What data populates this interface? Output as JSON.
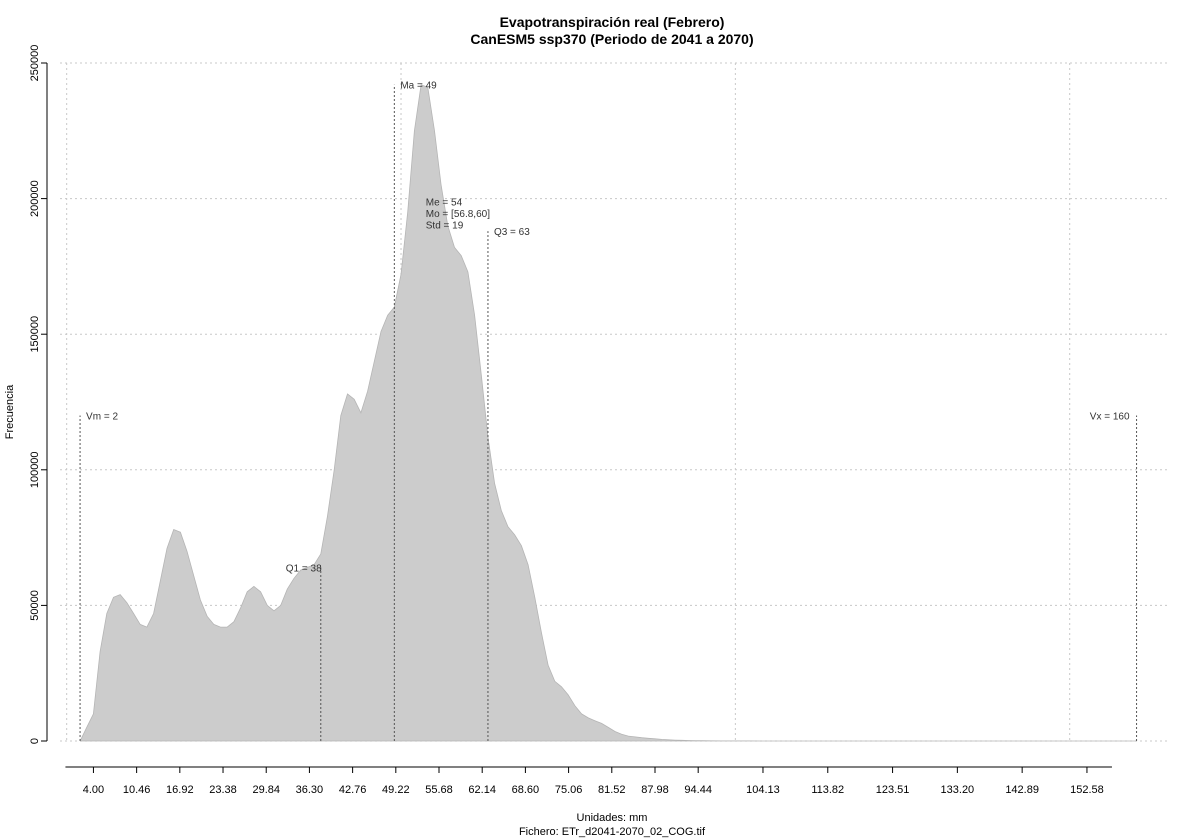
{
  "chart_data": {
    "type": "area",
    "title": "Evapotranspiración real (Febrero)",
    "subtitle": "CanESM5 ssp370 (Periodo de 2041 a 2070)",
    "xlabel": "Unidades: mm",
    "footer": "Fichero: ETr_d2041-2070_02_COG.tif",
    "ylabel": "Frecuencia",
    "xlim": [
      -1,
      165
    ],
    "ylim": [
      0,
      250000
    ],
    "y_ticks": [
      0,
      50000,
      100000,
      150000,
      200000,
      250000
    ],
    "y_tick_labels": [
      "0",
      "50000",
      "100000",
      "150000",
      "200000",
      "250000"
    ],
    "x_ticks": [
      4.0,
      10.46,
      16.92,
      23.38,
      29.84,
      36.3,
      42.76,
      49.22,
      55.68,
      62.14,
      68.6,
      75.06,
      81.52,
      87.98,
      94.44,
      104.13,
      113.82,
      123.51,
      133.2,
      142.89,
      152.58
    ],
    "x_tick_labels": [
      "4.00",
      "10.46",
      "16.92",
      "23.38",
      "29.84",
      "36.30",
      "42.76",
      "49.22",
      "55.68",
      "62.14",
      "68.60",
      "75.06",
      "81.52",
      "87.98",
      "94.44",
      "104.13",
      "113.82",
      "123.51",
      "133.20",
      "142.89",
      "152.58"
    ],
    "x_gridlines": [
      0,
      50,
      100,
      150
    ],
    "y_gridlines": [
      0,
      50000,
      100000,
      150000,
      200000,
      250000
    ],
    "grid": true,
    "fill_color": "#cccccc",
    "series": [
      {
        "x": [
          2,
          3,
          4,
          5,
          6,
          7,
          8,
          9,
          10,
          11,
          12,
          13,
          14,
          15,
          16,
          17,
          18,
          19,
          20,
          21,
          22,
          23,
          24,
          25,
          26,
          27,
          28,
          29,
          30,
          31,
          32,
          33,
          34,
          35,
          36,
          37,
          38,
          39,
          40,
          41,
          42,
          43,
          44,
          45,
          46,
          47,
          48,
          49,
          50,
          51,
          52,
          53,
          54,
          55,
          56,
          57,
          58,
          59,
          60,
          61,
          62,
          63,
          64,
          65,
          66,
          67,
          68,
          69,
          70,
          71,
          72,
          73,
          74,
          75,
          76,
          77,
          78,
          79,
          80,
          81,
          82,
          83,
          84,
          85,
          86,
          87,
          88,
          89,
          90,
          91,
          92,
          93,
          94,
          95,
          96,
          98,
          100,
          102,
          104,
          106,
          110,
          120,
          130,
          140,
          150,
          160
        ],
        "y": [
          0,
          5000,
          10000,
          33000,
          47000,
          53000,
          54000,
          51000,
          47000,
          43000,
          42000,
          47000,
          59000,
          71000,
          78000,
          77000,
          70000,
          61000,
          52000,
          46000,
          43000,
          42000,
          42000,
          44000,
          49000,
          55000,
          57000,
          55000,
          50000,
          48000,
          50000,
          56000,
          60000,
          63000,
          64000,
          65000,
          69000,
          83000,
          100000,
          120000,
          128000,
          126000,
          121000,
          129000,
          140000,
          151000,
          157000,
          160000,
          172000,
          195000,
          225000,
          242000,
          241000,
          225000,
          205000,
          190000,
          182000,
          179000,
          173000,
          157000,
          135000,
          112000,
          95000,
          85000,
          79000,
          76000,
          72000,
          65000,
          53000,
          40000,
          28000,
          22000,
          20000,
          17000,
          13000,
          10000,
          8500,
          7500,
          6500,
          5000,
          3500,
          2500,
          1800,
          1500,
          1200,
          1000,
          800,
          600,
          450,
          350,
          250,
          200,
          150,
          110,
          80,
          50,
          30,
          20,
          10,
          5,
          0,
          0,
          0,
          0,
          0,
          0
        ]
      }
    ],
    "markers": [
      {
        "label": "Vm = 2",
        "x": 2,
        "y_top": 120000,
        "label_anchor": "start"
      },
      {
        "label": "Q1 = 38",
        "x": 38,
        "y_top": 64000,
        "label_anchor": "middle"
      },
      {
        "label": "Ma = 49",
        "x": 49,
        "y_top": 242000,
        "label_anchor": "start"
      },
      {
        "label": "Q3 = 63",
        "x": 63,
        "y_top": 188000,
        "label_anchor": "start"
      },
      {
        "label": "Vx = 160",
        "x": 160,
        "y_top": 120000,
        "label_anchor": "end"
      }
    ],
    "stats_annotation": [
      "Me = 54",
      "Mo = [56.8,60]",
      "Std = 19"
    ],
    "stats_x": 54,
    "stats_y": 199000
  }
}
